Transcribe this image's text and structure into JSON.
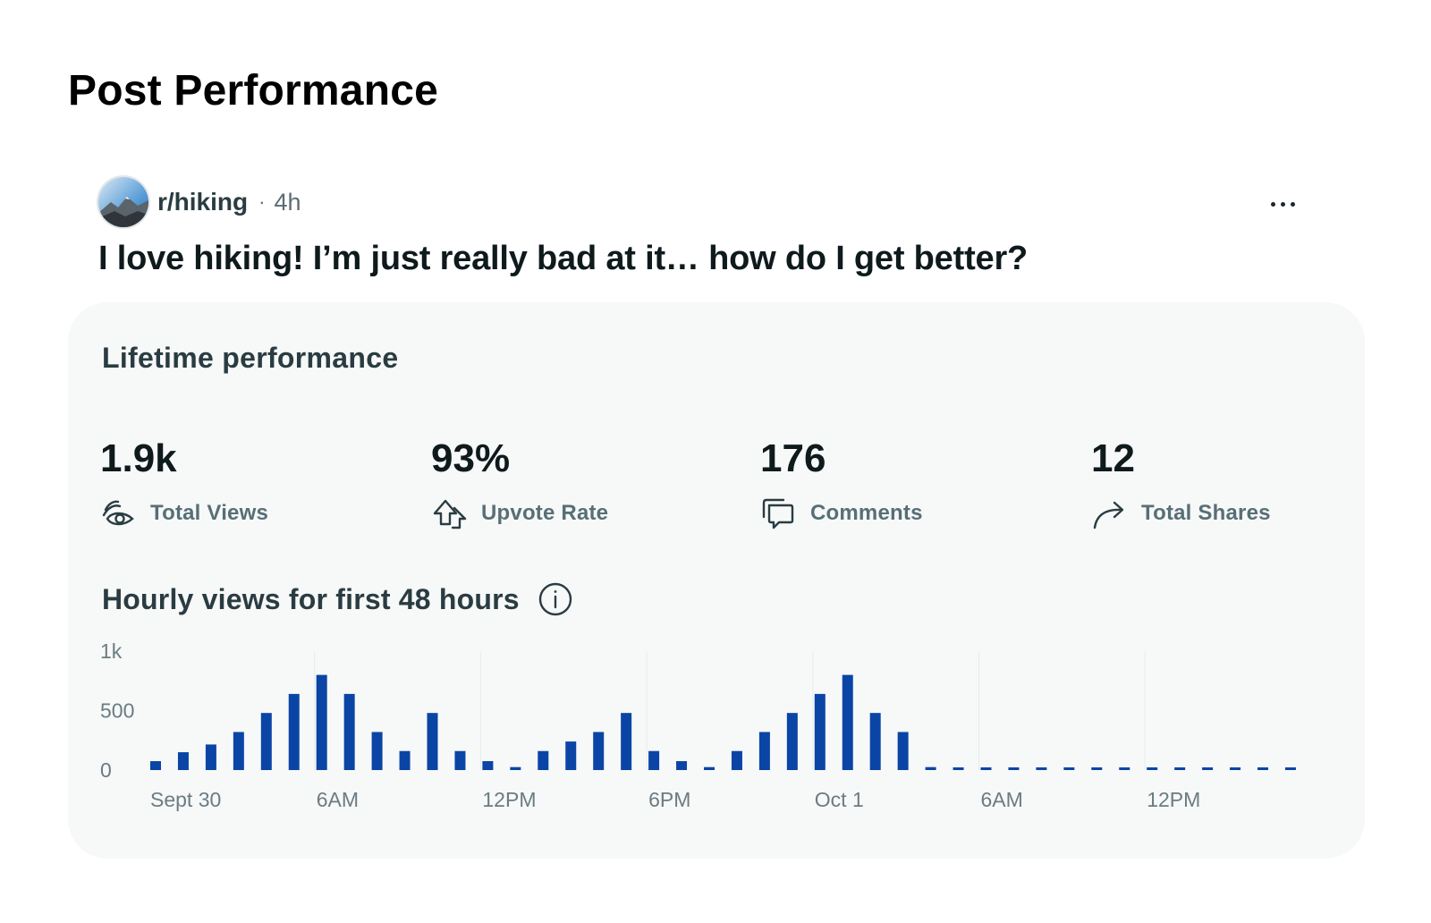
{
  "page": {
    "title": "Post Performance"
  },
  "post": {
    "subreddit": "r/hiking",
    "separator": "·",
    "age": "4h",
    "title": "I love hiking! I’m just really bad at it… how do I get better?",
    "more_icon": "ellipsis-horizontal-icon"
  },
  "card": {
    "title": "Lifetime performance",
    "stats": [
      {
        "value": "1.9k",
        "label": "Total Views",
        "icon": "eye-icon"
      },
      {
        "value": "93%",
        "label": "Upvote Rate",
        "icon": "upvote-arrow-icon"
      },
      {
        "value": "176",
        "label": "Comments",
        "icon": "comment-bubbles-icon"
      },
      {
        "value": "12",
        "label": "Total Shares",
        "icon": "share-arrow-icon"
      }
    ],
    "chart_title": "Hourly views for first 48 hours",
    "info_icon": "info-icon"
  },
  "colors": {
    "bar": "#0a45a6",
    "card_bg": "#f7f8f8",
    "grid": "#e9ecec"
  },
  "chart_data": {
    "type": "bar",
    "title": "Hourly views for first 48 hours",
    "xlabel": "",
    "ylabel": "",
    "ylim": [
      0,
      1000
    ],
    "yticks": [
      {
        "value": 0,
        "label": "0"
      },
      {
        "value": 500,
        "label": "500"
      },
      {
        "value": 1000,
        "label": "1k"
      }
    ],
    "xticks": [
      {
        "index": 0,
        "label": "Sept 30"
      },
      {
        "index": 6,
        "label": "6AM"
      },
      {
        "index": 12,
        "label": "12PM"
      },
      {
        "index": 18,
        "label": "6PM"
      },
      {
        "index": 24,
        "label": "Oct 1"
      },
      {
        "index": 30,
        "label": "6AM"
      },
      {
        "index": 36,
        "label": "12PM"
      }
    ],
    "grid": true,
    "values": [
      75,
      150,
      215,
      320,
      480,
      640,
      800,
      640,
      320,
      160,
      480,
      160,
      75,
      25,
      160,
      240,
      320,
      480,
      160,
      75,
      25,
      160,
      320,
      480,
      640,
      800,
      480,
      320,
      25,
      0,
      0,
      0,
      0,
      0,
      0,
      0,
      0,
      0,
      0,
      0,
      0,
      0
    ]
  }
}
